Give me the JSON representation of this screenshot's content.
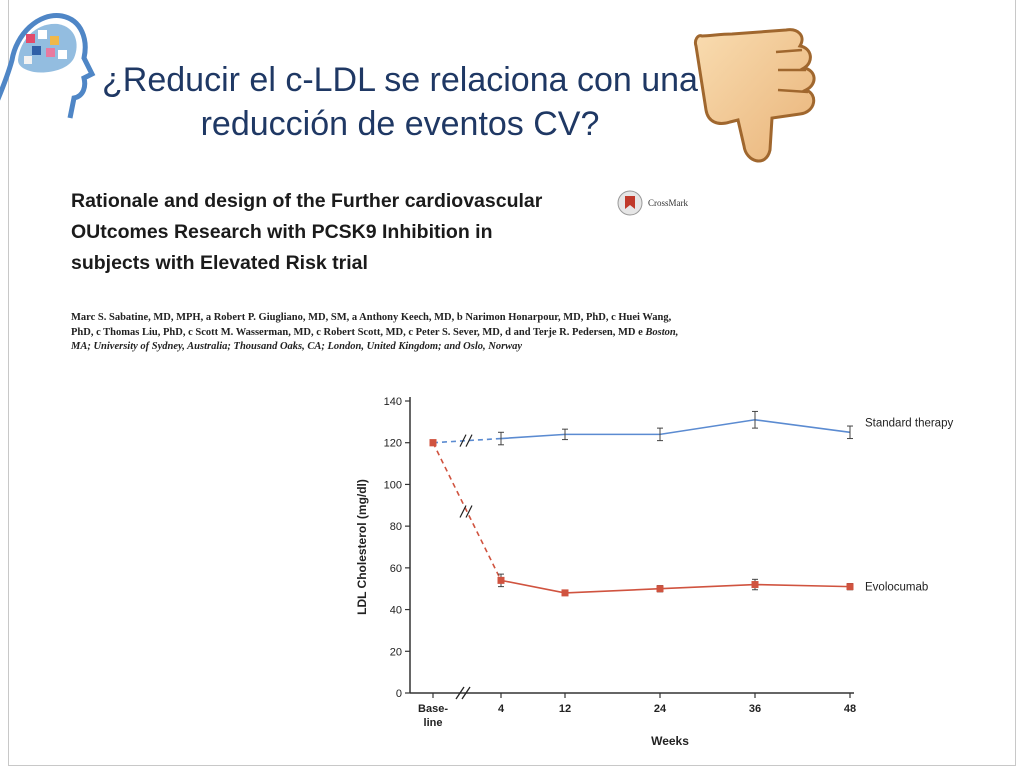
{
  "slide": {
    "title": "¿Reducir el c-LDL se relaciona con una reducción de eventos CV?"
  },
  "paper": {
    "title": "Rationale and design of the Further cardiovascular OUtcomes Research with PCSK9 Inhibition in subjects with Elevated Risk trial",
    "authors": "Marc S. Sabatine, MD, MPH, a Robert P. Giugliano, MD, SM, a Anthony Keech, MD, b Narimon Honarpour, MD, PhD, c Huei Wang, PhD, c Thomas Liu, PhD, c Scott M. Wasserman, MD, c Robert Scott, MD, c Peter S. Sever, MD, d and Terje R. Pedersen, MD e",
    "affiliations": "Boston, MA; University of Sydney, Australia; Thousand Oaks, CA; London, United Kingdom; and Oslo, Norway",
    "crossmark_label": "CrossMark"
  },
  "icons": {
    "logo": "brain-head-logo",
    "thumb": "thumbs-down-icon",
    "crossmark": "crossmark-icon"
  },
  "colors": {
    "title": "#1f3864",
    "standard_therapy": "#5b8bd1",
    "evolocumab": "#d0533f",
    "axis": "#333333"
  },
  "chart_data": {
    "type": "line",
    "xlabel": "Weeks",
    "ylabel": "LDL Cholesterol (mg/dl)",
    "x": [
      "Baseline",
      "4",
      "12",
      "24",
      "36",
      "48"
    ],
    "ylim": [
      0,
      140
    ],
    "yticks": [
      0,
      20,
      40,
      60,
      80,
      100,
      120,
      140
    ],
    "axis_break": "between Baseline and 4",
    "series": [
      {
        "name": "Standard therapy",
        "values": [
          120,
          122,
          124,
          124,
          131,
          125
        ],
        "errors": [
          0,
          3,
          2.5,
          3,
          4,
          3
        ],
        "marker": "none",
        "baseline_segment": "dashed"
      },
      {
        "name": "Evolocumab",
        "values": [
          120,
          54,
          48,
          50,
          52,
          51
        ],
        "errors": [
          0,
          3,
          1,
          1.5,
          2.5,
          1.5
        ],
        "marker": "square",
        "baseline_segment": "dashed"
      }
    ],
    "legend": "right, labels at line ends",
    "grid": false
  }
}
